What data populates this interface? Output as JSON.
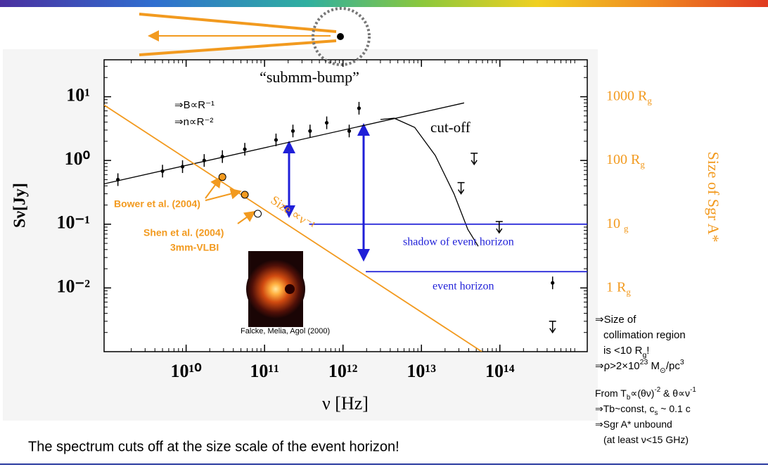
{
  "chart_data": {
    "type": "scatter",
    "xlabel": "ν [Hz]",
    "ylabel": "Sν[Jy]",
    "y2label": "Size of Sgr A*",
    "xscale": "log",
    "yscale": "log",
    "xlim": [
      900000000.0,
      1300000000000000.0
    ],
    "ylim": [
      0.001,
      38
    ],
    "y2lim": [
      0.1,
      3800
    ],
    "xticks": [
      {
        "value": 10000000000.0,
        "label": "10¹⁰"
      },
      {
        "value": 100000000000.0,
        "label": "10¹¹"
      },
      {
        "value": 1000000000000.0,
        "label": "10¹²"
      },
      {
        "value": 10000000000000.0,
        "label": "10¹³"
      },
      {
        "value": 100000000000000.0,
        "label": "10¹⁴"
      }
    ],
    "yticks": [
      {
        "value": 10,
        "label": "10¹"
      },
      {
        "value": 1,
        "label": "10⁰"
      },
      {
        "value": 0.1,
        "label": "10⁻¹"
      },
      {
        "value": 0.01,
        "label": "10⁻²"
      }
    ],
    "y2ticks": [
      {
        "value": 1000,
        "label": "1000 R",
        "sub": "g"
      },
      {
        "value": 100,
        "label": "100 R",
        "sub": "g"
      },
      {
        "value": 10,
        "label": "10 ",
        "sub": "g"
      },
      {
        "value": 1,
        "label": "1 R",
        "sub": "g"
      }
    ],
    "series": [
      {
        "marker": "dot",
        "color": "#000000",
        "x": [
          1350000000.0,
          5000000000.0,
          9000000000.0,
          17000000000.0,
          29000000000.0,
          56000000000.0,
          140000000000.0,
          230000000000.0,
          380000000000.0,
          620000000000.0,
          1200000000000.0,
          1600000000000.0,
          470000000000000.0
        ],
        "values": [
          0.5,
          0.68,
          0.8,
          1.0,
          1.15,
          1.5,
          2.1,
          2.9,
          2.9,
          3.9,
          2.9,
          6.6,
          0.012
        ]
      },
      {
        "marker": "limit",
        "color": "#000000",
        "x": [
          47000000000000.0,
          32000000000000.0,
          98000000000000.0,
          470000000000000.0
        ],
        "values": [
          1.3,
          0.45,
          0.11,
          0.003
        ]
      },
      {
        "marker": "circle",
        "color": "#f29a1f",
        "x": [
          29000000000.0,
          56000000000.0
        ],
        "values": [
          0.55,
          0.29
        ]
      },
      {
        "marker": "open-circle",
        "color": "#f29a1f",
        "x": [
          82000000000.0
        ],
        "values": [
          0.146
        ]
      },
      {
        "marker": "line",
        "color": "#000000",
        "x": [
          900000000.0,
          35000000000000.0
        ],
        "values": [
          0.43,
          8
        ]
      },
      {
        "marker": "line",
        "color": "#f29a1f",
        "x": [
          900000000.0,
          59000000000000.0
        ],
        "values": [
          7.4,
          0.001
        ]
      },
      {
        "marker": "line",
        "color": "#000000",
        "x": [
          3000000000000.0,
          4500000000000.0,
          8200000000000.0,
          15000000000000.0,
          26000000000000.0,
          39000000000000.0,
          53000000000000.0
        ],
        "values": [
          4.4,
          4.6,
          3.3,
          1.2,
          0.3,
          0.083,
          0.045
        ]
      },
      {
        "marker": "line",
        "color": "#1f1fd8",
        "x": [
          370000000000.0,
          1300000000000000.0
        ],
        "values": [
          0.1,
          0.1
        ]
      },
      {
        "marker": "line",
        "color": "#1f1fd8",
        "x": [
          1950000000000.0,
          1300000000000000.0
        ],
        "values": [
          0.018,
          0.018
        ]
      }
    ],
    "annotations": [
      "“submm-bump”",
      "⇒B∝R⁻¹",
      "⇒n∝R⁻²",
      "cut-off",
      "Bower et al. (2004)",
      "Shen et al. (2004)",
      "3mm-VLBI",
      "Size ∝ν⁻¹",
      "shadow of event horizon",
      "event horizon",
      "Falcke, Melia, Agol (2000)"
    ]
  },
  "notes": [
    [
      "⇒Size of"
    ],
    [
      "collimation region"
    ],
    [
      "is <10 R",
      {
        "sub": "g"
      },
      "!"
    ],
    [
      "⇒ρ>2×10",
      {
        "sup": "23"
      },
      " M",
      {
        "sub": "⊙"
      },
      "/pc",
      {
        "sup": "3"
      }
    ],
    [
      "From T",
      {
        "sub": "b"
      },
      "∝(θν)",
      {
        "sup": "-2"
      },
      " & θ∝ν",
      {
        "sup": "-1"
      }
    ],
    [
      "⇒Tb~const, c",
      {
        "sub": "s"
      },
      " ~ 0.1 c"
    ],
    [
      "⇒Sgr A* unbound"
    ],
    [
      "(at least ν<15 GHz)"
    ]
  ],
  "footer": "The spectrum cuts off at the size scale of the event horizon!"
}
